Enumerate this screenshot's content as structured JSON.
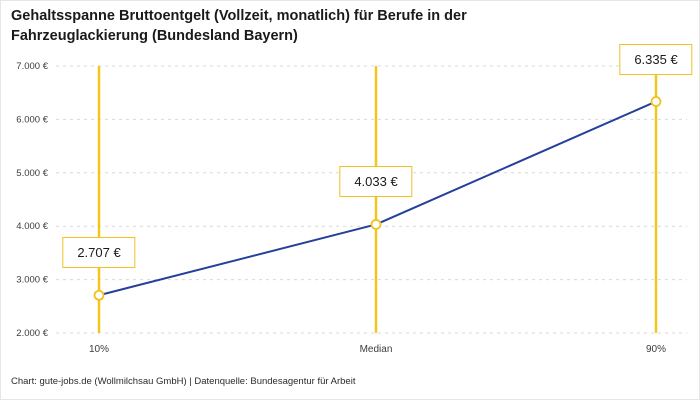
{
  "chart_data": {
    "type": "line",
    "title": "Gehaltsspanne Bruttoentgelt (Vollzeit, monatlich) für Berufe in der Fahrzeuglackierung (Bundesland Bayern)",
    "categories": [
      "10%",
      "Median",
      "90%"
    ],
    "values": [
      2707,
      4033,
      6335
    ],
    "value_labels": [
      "2.707 €",
      "4.033 €",
      "6.335 €"
    ],
    "y_ticks": [
      2000,
      3000,
      4000,
      5000,
      6000,
      7000
    ],
    "y_tick_labels": [
      "2.000 €",
      "3.000 €",
      "4.000 €",
      "5.000 €",
      "6.000 €",
      "7.000 €"
    ],
    "ylim": [
      2000,
      7000
    ],
    "grid": "dashed-horizontal",
    "legend": "none",
    "colors": {
      "line": "#24409a",
      "marker_fill": "#ffffff",
      "marker_stroke": "#f0c220",
      "vertical_line": "#f5c51e",
      "grid": "#d9d9d9",
      "label_border": "#f0c220"
    },
    "source": "Chart: gute-jobs.de (Wollmilchsau GmbH) | Datenquelle: Bundesagentur für Arbeit"
  }
}
